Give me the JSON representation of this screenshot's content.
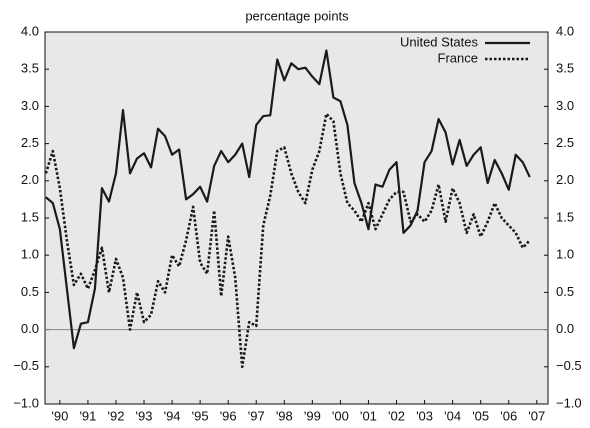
{
  "chart_data": {
    "type": "line",
    "title": "percentage points",
    "x": [
      1989.5,
      1989.75,
      1990,
      1990.25,
      1990.5,
      1990.75,
      1991,
      1991.25,
      1991.5,
      1991.75,
      1992,
      1992.25,
      1992.5,
      1992.75,
      1993,
      1993.25,
      1993.5,
      1993.75,
      1994,
      1994.25,
      1994.5,
      1994.75,
      1995,
      1995.25,
      1995.5,
      1995.75,
      1996,
      1996.25,
      1996.5,
      1996.75,
      1997,
      1997.25,
      1997.5,
      1997.75,
      1998,
      1998.25,
      1998.5,
      1998.75,
      1999,
      1999.25,
      1999.5,
      1999.75,
      2000,
      2000.25,
      2000.5,
      2000.75,
      2001,
      2001.25,
      2001.5,
      2001.75,
      2002,
      2002.25,
      2002.5,
      2002.75,
      2003,
      2003.25,
      2003.5,
      2003.75,
      2004,
      2004.25,
      2004.5,
      2004.75,
      2005,
      2005.25,
      2005.5,
      2005.75,
      2006,
      2006.25,
      2006.5,
      2006.75
    ],
    "series": [
      {
        "name": "United States",
        "color": "#1a1a1a",
        "dash": "solid",
        "values": [
          1.78,
          1.7,
          1.35,
          0.55,
          -0.25,
          0.08,
          0.1,
          0.55,
          1.9,
          1.72,
          2.1,
          2.95,
          2.1,
          2.3,
          2.37,
          2.18,
          2.7,
          2.6,
          2.35,
          2.42,
          1.75,
          1.82,
          1.92,
          1.72,
          2.2,
          2.4,
          2.25,
          2.35,
          2.5,
          2.05,
          2.75,
          2.87,
          2.88,
          3.63,
          3.35,
          3.58,
          3.5,
          3.52,
          3.4,
          3.3,
          3.75,
          3.12,
          3.07,
          2.75,
          1.97,
          1.7,
          1.35,
          1.95,
          1.92,
          2.15,
          2.25,
          1.3,
          1.4,
          1.6,
          2.25,
          2.4,
          2.83,
          2.65,
          2.22,
          2.55,
          2.2,
          2.35,
          2.45,
          1.97,
          2.28,
          2.1,
          1.88,
          2.35,
          2.25,
          2.05
        ]
      },
      {
        "name": "France",
        "color": "#1a1a1a",
        "dash": "dotted",
        "values": [
          2.1,
          2.4,
          1.9,
          1.2,
          0.6,
          0.75,
          0.55,
          0.8,
          1.1,
          0.5,
          0.95,
          0.7,
          0.0,
          0.5,
          0.1,
          0.2,
          0.65,
          0.5,
          1.0,
          0.85,
          1.2,
          1.65,
          0.9,
          0.75,
          1.6,
          0.45,
          1.25,
          0.7,
          -0.5,
          0.1,
          0.05,
          1.4,
          1.8,
          2.4,
          2.45,
          2.1,
          1.85,
          1.7,
          2.15,
          2.4,
          2.9,
          2.8,
          2.1,
          1.7,
          1.6,
          1.45,
          1.7,
          1.35,
          1.55,
          1.75,
          1.85,
          1.85,
          1.45,
          1.55,
          1.45,
          1.6,
          1.95,
          1.45,
          1.9,
          1.7,
          1.3,
          1.55,
          1.25,
          1.45,
          1.7,
          1.5,
          1.4,
          1.3,
          1.1,
          1.2
        ]
      }
    ],
    "xlim": [
      1989.47,
      2007.4
    ],
    "xticks": [
      {
        "value": 1990,
        "label": "'90"
      },
      {
        "value": 1991,
        "label": "'91"
      },
      {
        "value": 1992,
        "label": "'92"
      },
      {
        "value": 1993,
        "label": "'93"
      },
      {
        "value": 1994,
        "label": "'94"
      },
      {
        "value": 1995,
        "label": "'95"
      },
      {
        "value": 1996,
        "label": "'96"
      },
      {
        "value": 1997,
        "label": "'97"
      },
      {
        "value": 1998,
        "label": "'98"
      },
      {
        "value": 1999,
        "label": "'99"
      },
      {
        "value": 2000,
        "label": "'00"
      },
      {
        "value": 2001,
        "label": "'01"
      },
      {
        "value": 2002,
        "label": "'02"
      },
      {
        "value": 2003,
        "label": "'03"
      },
      {
        "value": 2004,
        "label": "'04"
      },
      {
        "value": 2005,
        "label": "'05"
      },
      {
        "value": 2006,
        "label": "'06"
      },
      {
        "value": 2007,
        "label": "'07"
      }
    ],
    "ylim": [
      -1,
      4
    ],
    "yticks": [
      {
        "value": -1,
        "label": "−1.0"
      },
      {
        "value": -0.5,
        "label": "−0.5"
      },
      {
        "value": 0,
        "label": "0.0"
      },
      {
        "value": 0.5,
        "label": "0.5"
      },
      {
        "value": 1,
        "label": "1.0"
      },
      {
        "value": 1.5,
        "label": "1.5"
      },
      {
        "value": 2,
        "label": "2.0"
      },
      {
        "value": 2.5,
        "label": "2.5"
      },
      {
        "value": 3,
        "label": "3.0"
      },
      {
        "value": 3.5,
        "label": "3.5"
      },
      {
        "value": 4,
        "label": "4.0"
      }
    ],
    "y2lim": [
      -1,
      4
    ],
    "y2ticks": [
      {
        "value": -1,
        "label": "−1.0"
      },
      {
        "value": -0.5,
        "label": "−0.5"
      },
      {
        "value": 0,
        "label": "0.0"
      },
      {
        "value": 0.5,
        "label": "0.5"
      },
      {
        "value": 1,
        "label": "1.0"
      },
      {
        "value": 1.5,
        "label": "1.5"
      },
      {
        "value": 2,
        "label": "2.0"
      },
      {
        "value": 2.5,
        "label": "2.5"
      },
      {
        "value": 3,
        "label": "3.0"
      },
      {
        "value": 3.5,
        "label": "3.5"
      },
      {
        "value": 4,
        "label": "4.0"
      }
    ],
    "grid": false,
    "legend": "top-right",
    "zero_line": true
  }
}
